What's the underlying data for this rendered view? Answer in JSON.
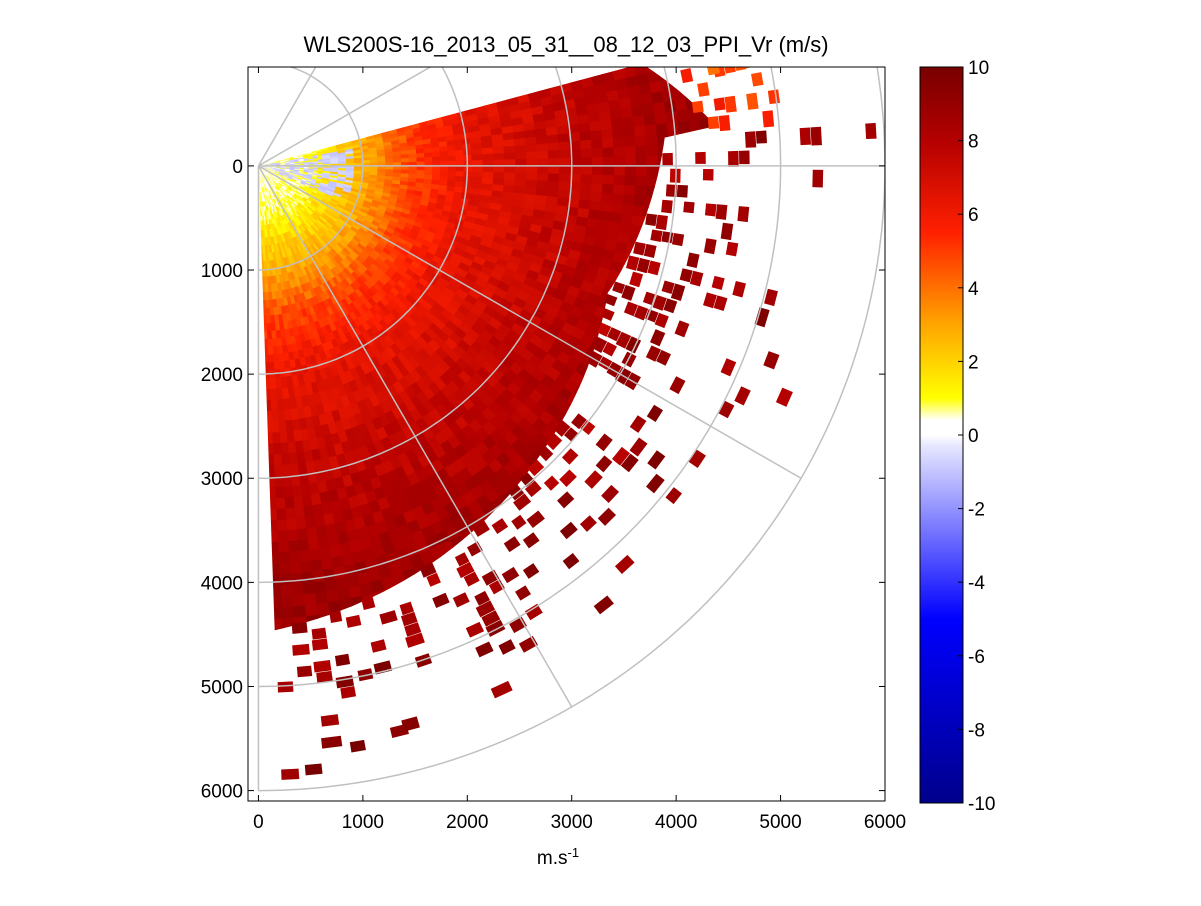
{
  "chart_data": {
    "type": "heatmap",
    "subtype": "polar-ppi-scan",
    "title": "WLS200S-16_2013_05_31__08_12_03_PPI_Vr (m/s)",
    "xlabel": "m.s",
    "xlabel_superscript": "-1",
    "ylabel": "",
    "xlim": [
      -100,
      6000
    ],
    "ylim": [
      -950,
      6100
    ],
    "y_reversed": true,
    "xticks": [
      0,
      1000,
      2000,
      3000,
      4000,
      5000,
      6000
    ],
    "xtick_labels": [
      "0",
      "1000",
      "2000",
      "3000",
      "4000",
      "5000",
      "6000"
    ],
    "yticks": [
      0,
      1000,
      2000,
      3000,
      4000,
      5000,
      6000
    ],
    "ytick_labels": [
      "0",
      "1000",
      "2000",
      "3000",
      "4000",
      "5000",
      "6000"
    ],
    "polar_grid": {
      "origin": [
        0,
        0
      ],
      "ring_radii": [
        1000,
        2000,
        3000,
        4000,
        5000,
        6000
      ],
      "spokes_deg_below_horizontal": [
        -60,
        -30,
        0,
        30,
        60,
        90
      ]
    },
    "scan": {
      "azimuth_range_deg": [
        -15,
        88
      ],
      "max_range_m": 6000,
      "velocity_by_range": {
        "range_m": [
          0,
          500,
          1000,
          1500,
          2000,
          3000,
          4000,
          5000
        ],
        "vr_ms": [
          0.2,
          1.0,
          2.8,
          5.0,
          6.3,
          7.6,
          8.6,
          9.2
        ]
      },
      "near_origin_negative_vr_ms": -0.8
    },
    "colorbar": {
      "min": -10,
      "max": 10,
      "ticks": [
        10,
        8,
        6,
        4,
        2,
        0,
        -2,
        -4,
        -6,
        -8,
        -10
      ],
      "tick_labels": [
        "10",
        "8",
        "6",
        "4",
        "2",
        "0",
        "-2",
        "-4",
        "-6",
        "-8",
        "-10"
      ],
      "stops": [
        {
          "value": -10,
          "color": "#00008b"
        },
        {
          "value": -5,
          "color": "#0000ff"
        },
        {
          "value": -0.3,
          "color": "#e6e6ff"
        },
        {
          "value": 0,
          "color": "#ffffff"
        },
        {
          "value": 0.4,
          "color": "#ffffff"
        },
        {
          "value": 1,
          "color": "#ffff00"
        },
        {
          "value": 3,
          "color": "#ffa500"
        },
        {
          "value": 5.5,
          "color": "#ff2000"
        },
        {
          "value": 8,
          "color": "#b40000"
        },
        {
          "value": 10,
          "color": "#780000"
        }
      ]
    },
    "colors": {
      "grid": "#c0c0c0",
      "axes": "#000000",
      "background": "#ffffff"
    }
  }
}
